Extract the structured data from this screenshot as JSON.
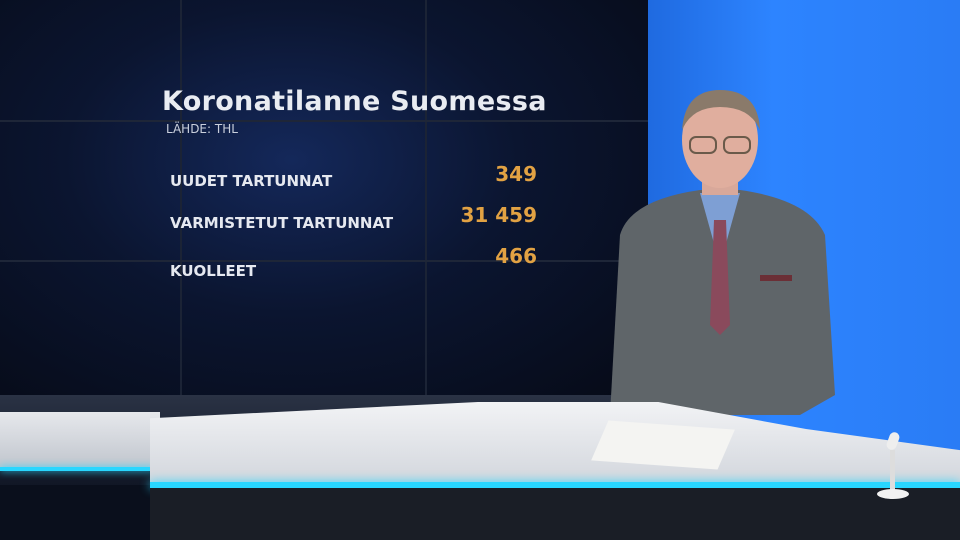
{
  "graphic": {
    "title": "Koronatilanne Suomessa",
    "source": "LÄHDE:  THL",
    "rows": [
      {
        "label": "UUDET TARTUNNAT",
        "value": "349"
      },
      {
        "label": "VARMISTETUT TARTUNNAT",
        "value": "31 459"
      },
      {
        "label": "KUOLLEET",
        "value": "466"
      }
    ],
    "colors": {
      "value": "#e2a243",
      "label": "#e6e9f0",
      "wall": "#2d84ff",
      "accent_light": "#28d6ff"
    }
  }
}
